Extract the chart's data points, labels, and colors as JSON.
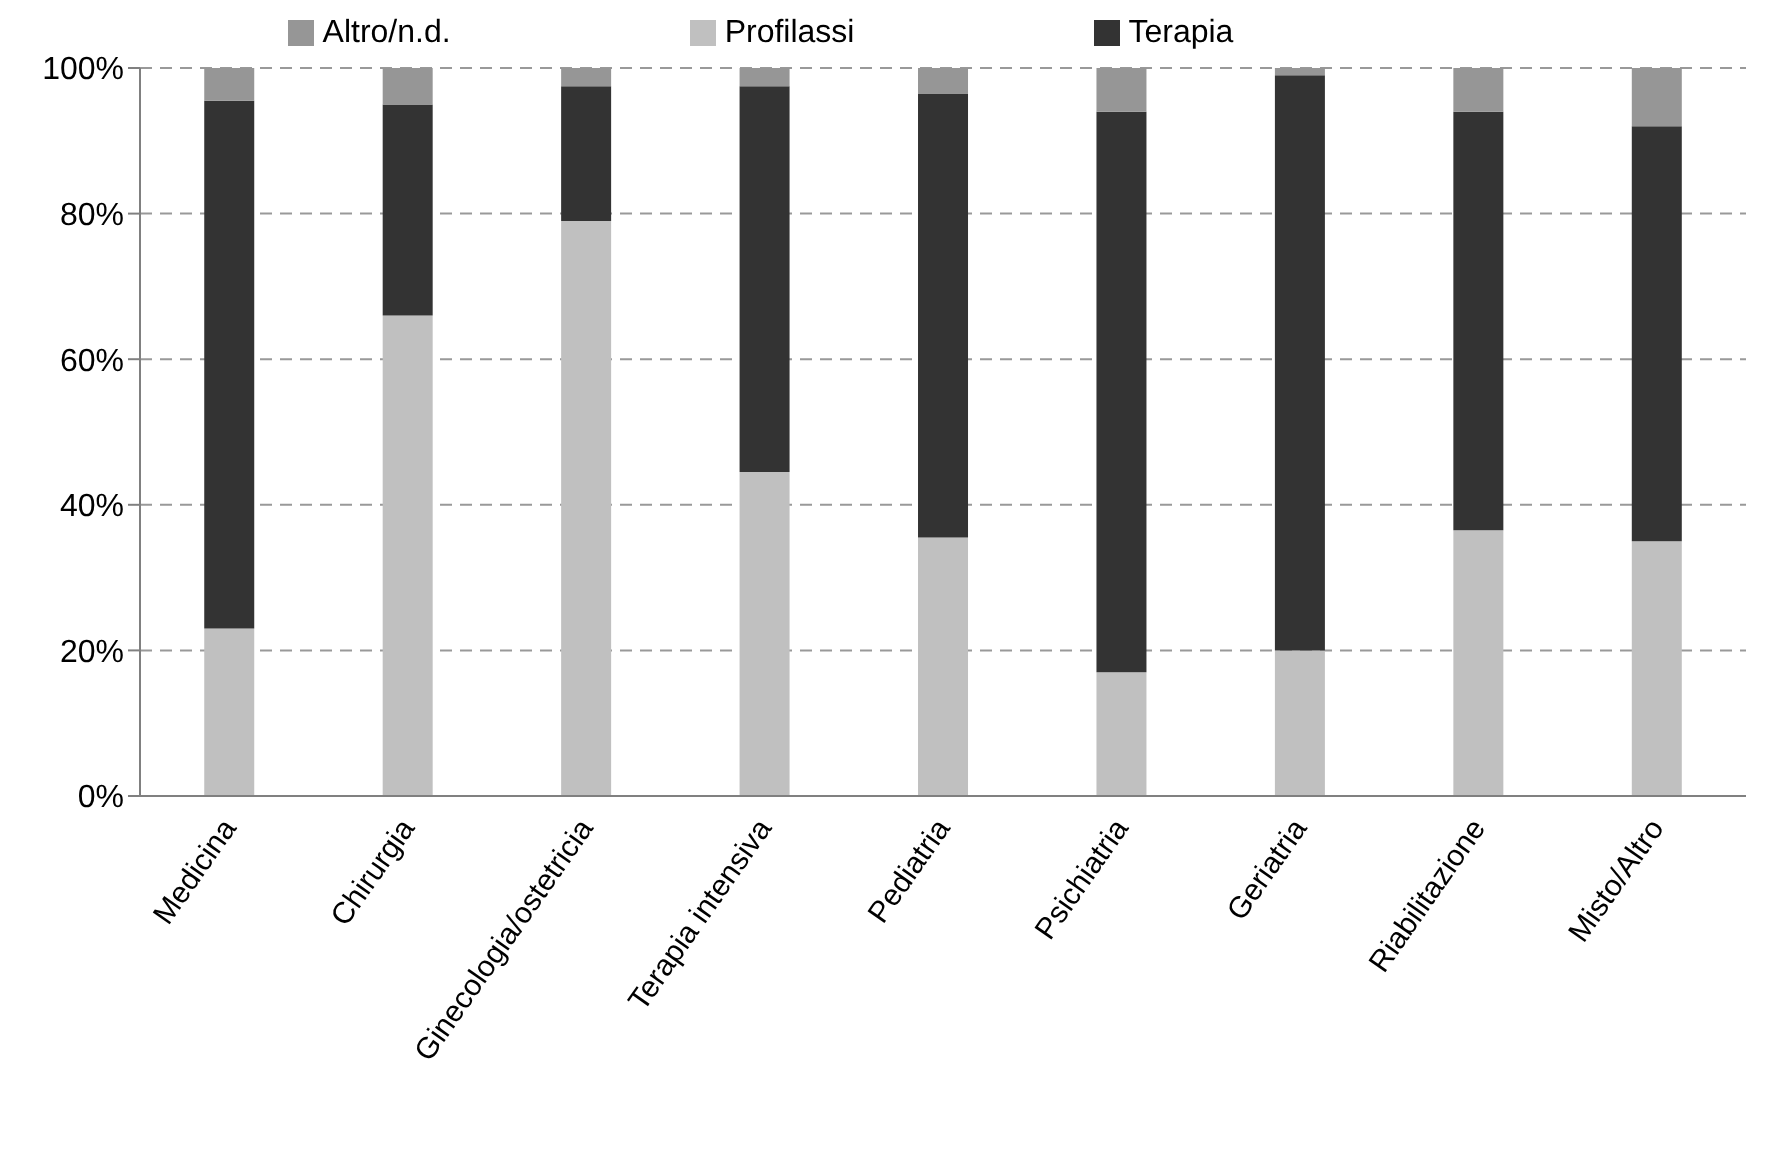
{
  "chart_data": {
    "type": "bar",
    "stacked": true,
    "categories": [
      "Medicina",
      "Chirurgia",
      "Ginecologia/ostetricia",
      "Terapia intensiva",
      "Pediatria",
      "Psichiatria",
      "Geriatria",
      "Riabilitazione",
      "Misto/Altro"
    ],
    "series": [
      {
        "name": "Profilassi",
        "color": "#c0c0c0",
        "values": [
          23,
          66,
          79,
          44.5,
          35.5,
          17,
          20,
          36.5,
          35
        ]
      },
      {
        "name": "Terapia",
        "color": "#333333",
        "values": [
          72.5,
          29,
          18.5,
          53,
          61,
          77,
          79,
          57.5,
          57
        ]
      },
      {
        "name": "Altro/n.d.",
        "color": "#969696",
        "values": [
          4.5,
          5,
          2.5,
          2.5,
          3.5,
          6,
          1,
          6,
          8
        ]
      }
    ],
    "ylim": [
      0,
      100
    ],
    "yticks": [
      {
        "value": 0,
        "label": "0%"
      },
      {
        "value": 20,
        "label": "20%"
      },
      {
        "value": 40,
        "label": "40%"
      },
      {
        "value": 60,
        "label": "60%"
      },
      {
        "value": 80,
        "label": "80%"
      },
      {
        "value": 100,
        "label": "100%"
      }
    ],
    "grid": "y",
    "legend": "top"
  }
}
